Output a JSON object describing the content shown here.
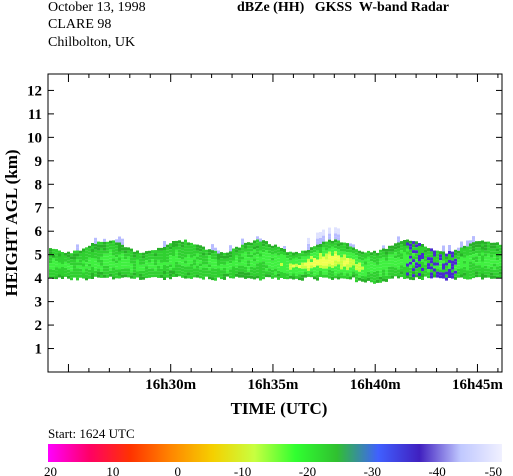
{
  "header": {
    "date": "October 13, 1998",
    "campaign": "CLARE 98",
    "location": "Chilbolton, UK",
    "title": "dBZe (HH)   GKSS  W-band Radar"
  },
  "footer": {
    "start_label": "Start:  1624 UTC"
  },
  "chart_data": {
    "type": "heatmap",
    "title": "dBZe (HH)   GKSS  W-band Radar",
    "xlabel": "TIME (UTC)",
    "ylabel": "HEIGHT AGL (km)",
    "x_ticks": [
      "16h30m",
      "16h35m",
      "16h40m",
      "16h45m"
    ],
    "x_tick_minutes": [
      30,
      35,
      40,
      45
    ],
    "xlim_minutes": [
      24,
      46.2
    ],
    "y_ticks": [
      "1",
      "2",
      "3",
      "4",
      "5",
      "6",
      "7",
      "8",
      "9",
      "10",
      "11",
      "12"
    ],
    "y_tick_values": [
      1,
      2,
      3,
      4,
      5,
      6,
      7,
      8,
      9,
      10,
      11,
      12
    ],
    "ylim": [
      0,
      12.7
    ],
    "colorbar": {
      "labels": [
        "20",
        "10",
        "0",
        "-10",
        "-20",
        "-30",
        "-40",
        "-50"
      ],
      "values": [
        20,
        10,
        0,
        -10,
        -20,
        -30,
        -40,
        -50
      ],
      "colors": [
        "#ff00ff",
        "#ff0066",
        "#ff3300",
        "#ff8800",
        "#f5d000",
        "#c8ff40",
        "#30ff30",
        "#30c030",
        "#4060ff",
        "#4020c0",
        "#c0c8ff",
        "#f0f0ff"
      ]
    },
    "cloud_layer": {
      "base_km": 4.1,
      "top_km": 5.5,
      "peak_reflectivity_dbze": -15,
      "peak_time_minutes": 37.5,
      "dominant_reflectivity_dbze": -30
    }
  }
}
